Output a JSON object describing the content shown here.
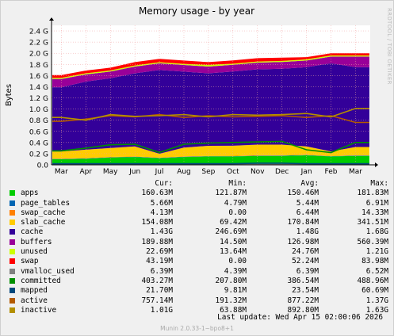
{
  "window": {
    "title": "Memory usage - by year",
    "side_label": "RRDTOOL / TOBI OETIKER"
  },
  "chart_data": {
    "type": "area",
    "title": "Memory usage - by year",
    "xlabel": "",
    "ylabel": "Bytes",
    "ylim": [
      0,
      2.5
    ],
    "y_unit": "G",
    "yticks": [
      "0.0",
      "0.2 G",
      "0.4 G",
      "0.6 G",
      "0.8 G",
      "1.0 G",
      "1.2 G",
      "1.4 G",
      "1.6 G",
      "1.8 G",
      "2.0 G",
      "2.2 G",
      "2.4 G"
    ],
    "x": [
      "Mar",
      "Apr",
      "May",
      "Jun",
      "Jul",
      "Aug",
      "Sep",
      "Oct",
      "Nov",
      "Dec",
      "Jan",
      "Feb",
      "Mar"
    ],
    "grid": true,
    "legend_position": "bottom",
    "stacked_total_approx_G": 1.95,
    "series": [
      {
        "name": "apps",
        "color": "#00cc00",
        "values_G": [
          0.1,
          0.11,
          0.13,
          0.14,
          0.12,
          0.14,
          0.15,
          0.15,
          0.16,
          0.16,
          0.17,
          0.15,
          0.16
        ]
      },
      {
        "name": "page_tables",
        "color": "#0066b3",
        "values_G": [
          0.005,
          0.005,
          0.005,
          0.005,
          0.005,
          0.005,
          0.005,
          0.005,
          0.005,
          0.006,
          0.006,
          0.005,
          0.006
        ]
      },
      {
        "name": "swap_cache",
        "color": "#ff8000",
        "values_G": [
          0.005,
          0.006,
          0.007,
          0.006,
          0.004,
          0.005,
          0.006,
          0.007,
          0.007,
          0.006,
          0.004,
          0.005,
          0.004
        ]
      },
      {
        "name": "slab_cache",
        "color": "#ffcc00",
        "values_G": [
          0.13,
          0.15,
          0.16,
          0.18,
          0.07,
          0.16,
          0.18,
          0.18,
          0.19,
          0.19,
          0.15,
          0.08,
          0.15
        ]
      },
      {
        "name": "cache",
        "color": "#330099",
        "values_G": [
          1.15,
          1.22,
          1.25,
          1.31,
          1.5,
          1.36,
          1.3,
          1.33,
          1.35,
          1.36,
          1.42,
          1.58,
          1.43
        ]
      },
      {
        "name": "buffers",
        "color": "#990099",
        "values_G": [
          0.15,
          0.13,
          0.12,
          0.12,
          0.12,
          0.12,
          0.12,
          0.12,
          0.12,
          0.12,
          0.12,
          0.12,
          0.19
        ]
      },
      {
        "name": "unused",
        "color": "#ccff00",
        "values_G": [
          0.02,
          0.02,
          0.02,
          0.02,
          0.02,
          0.02,
          0.03,
          0.02,
          0.02,
          0.02,
          0.02,
          0.02,
          0.02
        ]
      },
      {
        "name": "swap",
        "color": "#ff0000",
        "values_G": [
          0.05,
          0.05,
          0.05,
          0.06,
          0.06,
          0.06,
          0.05,
          0.06,
          0.06,
          0.06,
          0.04,
          0.04,
          0.04
        ]
      }
    ],
    "lines": [
      {
        "name": "vmalloc_used",
        "color": "#808080",
        "values_G": [
          0.006,
          0.006,
          0.006,
          0.006,
          0.006,
          0.006,
          0.006,
          0.006,
          0.006,
          0.006,
          0.006,
          0.006,
          0.006
        ]
      },
      {
        "name": "committed",
        "color": "#008f00",
        "values_G": [
          0.25,
          0.3,
          0.36,
          0.37,
          0.22,
          0.37,
          0.39,
          0.4,
          0.41,
          0.42,
          0.27,
          0.22,
          0.4
        ]
      },
      {
        "name": "mapped",
        "color": "#00487d",
        "values_G": [
          0.02,
          0.02,
          0.02,
          0.02,
          0.02,
          0.02,
          0.02,
          0.02,
          0.03,
          0.03,
          0.02,
          0.02,
          0.02
        ]
      },
      {
        "name": "active",
        "color": "#b35a00",
        "values_G": [
          0.78,
          0.82,
          0.88,
          0.86,
          0.9,
          0.85,
          0.88,
          0.86,
          0.87,
          0.88,
          0.85,
          0.88,
          0.76
        ]
      },
      {
        "name": "inactive",
        "color": "#b38f00",
        "values_G": [
          0.85,
          0.8,
          0.9,
          0.87,
          0.88,
          0.9,
          0.86,
          0.9,
          0.89,
          0.9,
          0.92,
          0.86,
          1.01
        ]
      }
    ]
  },
  "legend": {
    "headers": {
      "cur": "Cur:",
      "min": "Min:",
      "avg": "Avg:",
      "max": "Max:"
    },
    "rows": [
      {
        "name": "apps",
        "color": "#00cc00",
        "cur": "160.63M",
        "min": "121.87M",
        "avg": "150.46M",
        "max": "181.83M"
      },
      {
        "name": "page_tables",
        "color": "#0066b3",
        "cur": "5.66M",
        "min": "4.79M",
        "avg": "5.44M",
        "max": "6.91M"
      },
      {
        "name": "swap_cache",
        "color": "#ff8000",
        "cur": "4.13M",
        "min": "0.00",
        "avg": "6.44M",
        "max": "14.33M"
      },
      {
        "name": "slab_cache",
        "color": "#ffcc00",
        "cur": "154.08M",
        "min": "69.42M",
        "avg": "170.84M",
        "max": "341.51M"
      },
      {
        "name": "cache",
        "color": "#330099",
        "cur": "1.43G",
        "min": "246.69M",
        "avg": "1.48G",
        "max": "1.68G"
      },
      {
        "name": "buffers",
        "color": "#990099",
        "cur": "189.88M",
        "min": "14.50M",
        "avg": "126.98M",
        "max": "560.39M"
      },
      {
        "name": "unused",
        "color": "#ccff00",
        "cur": "22.69M",
        "min": "13.64M",
        "avg": "24.76M",
        "max": "1.21G"
      },
      {
        "name": "swap",
        "color": "#ff0000",
        "cur": "43.19M",
        "min": "0.00",
        "avg": "52.24M",
        "max": "83.98M"
      },
      {
        "name": "vmalloc_used",
        "color": "#808080",
        "cur": "6.39M",
        "min": "4.39M",
        "avg": "6.39M",
        "max": "6.52M"
      },
      {
        "name": "committed",
        "color": "#008f00",
        "cur": "403.27M",
        "min": "207.80M",
        "avg": "386.54M",
        "max": "488.96M"
      },
      {
        "name": "mapped",
        "color": "#00487d",
        "cur": "21.70M",
        "min": "9.81M",
        "avg": "23.54M",
        "max": "60.69M"
      },
      {
        "name": "active",
        "color": "#b35a00",
        "cur": "757.14M",
        "min": "191.32M",
        "avg": "877.22M",
        "max": "1.37G"
      },
      {
        "name": "inactive",
        "color": "#b38f00",
        "cur": "1.01G",
        "min": "63.88M",
        "avg": "892.80M",
        "max": "1.63G"
      }
    ]
  },
  "last_update": "Last update: Wed Apr 15 02:00:06 2026",
  "footer": "Munin 2.0.33-1~bpo8+1"
}
